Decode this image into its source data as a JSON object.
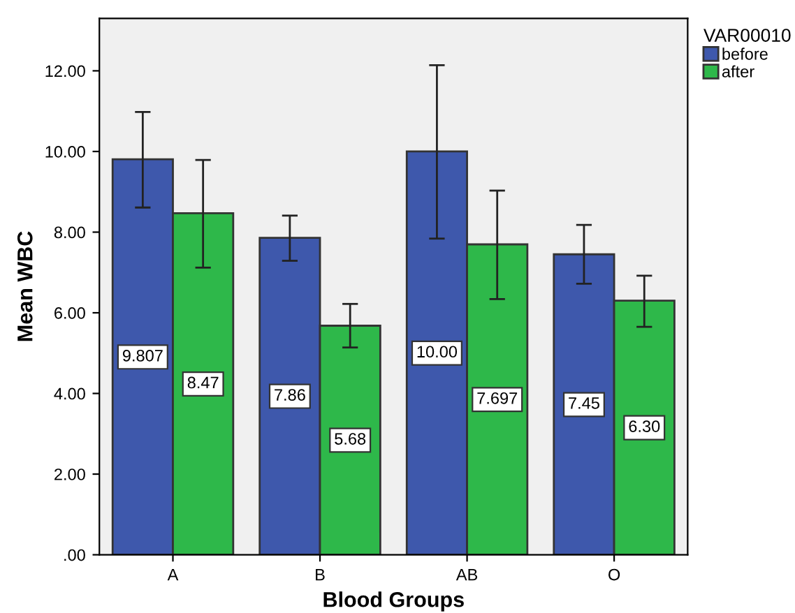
{
  "chart_data": {
    "type": "bar",
    "xlabel": "Blood Groups",
    "ylabel": "Mean WBC",
    "legend_title": "VAR00010",
    "categories": [
      "A",
      "B",
      "AB",
      "O"
    ],
    "series": [
      {
        "name": "before",
        "color": "#3e58ac",
        "values": [
          9.807,
          7.86,
          10.0,
          7.45
        ],
        "errors": [
          [
            8.61,
            10.98
          ],
          [
            7.29,
            8.41
          ],
          [
            7.84,
            12.14
          ],
          [
            6.72,
            8.18
          ]
        ],
        "value_labels": [
          "9.807",
          "7.86",
          "10.00",
          "7.45"
        ]
      },
      {
        "name": "after",
        "color": "#2eb84a",
        "values": [
          8.47,
          5.68,
          7.697,
          6.3
        ],
        "errors": [
          [
            7.12,
            9.79
          ],
          [
            5.14,
            6.22
          ],
          [
            6.34,
            9.03
          ],
          [
            5.65,
            6.92
          ]
        ],
        "value_labels": [
          "8.47",
          "5.68",
          "7.697",
          "6.30"
        ]
      }
    ],
    "ylim": [
      0,
      13.3
    ],
    "yticks": [
      {
        "value": 0,
        "label": ".00"
      },
      {
        "value": 2,
        "label": "2.00"
      },
      {
        "value": 4,
        "label": "4.00"
      },
      {
        "value": 6,
        "label": "6.00"
      },
      {
        "value": 8,
        "label": "8.00"
      },
      {
        "value": 10,
        "label": "10.00"
      },
      {
        "value": 12,
        "label": "12.00"
      }
    ],
    "grid": false,
    "legend": "top right"
  }
}
